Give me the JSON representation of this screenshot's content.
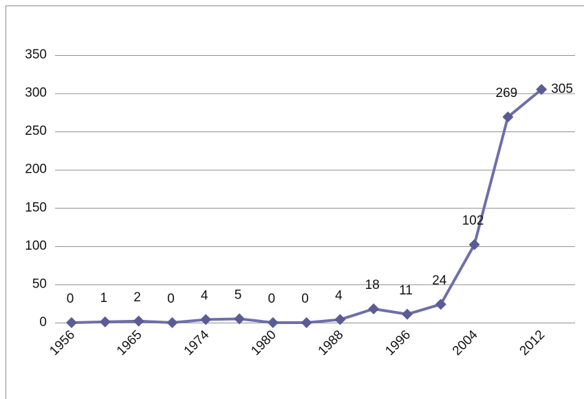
{
  "chart_data": {
    "type": "line",
    "categories": [
      "1956",
      null,
      "1965",
      null,
      "1974",
      null,
      "1980",
      null,
      "1988",
      null,
      "1996",
      null,
      "2004",
      null,
      "2012"
    ],
    "series": [
      {
        "name": null,
        "color": "#6e6eaa",
        "marker_color": "#5b5b95",
        "values": [
          0,
          1,
          2,
          0,
          4,
          5,
          0,
          0,
          4,
          18,
          11,
          24,
          102,
          269,
          305
        ]
      }
    ],
    "ylim": [
      0,
      350
    ],
    "yticks": [
      0,
      50,
      100,
      150,
      200,
      250,
      300,
      350
    ],
    "grid": true
  }
}
